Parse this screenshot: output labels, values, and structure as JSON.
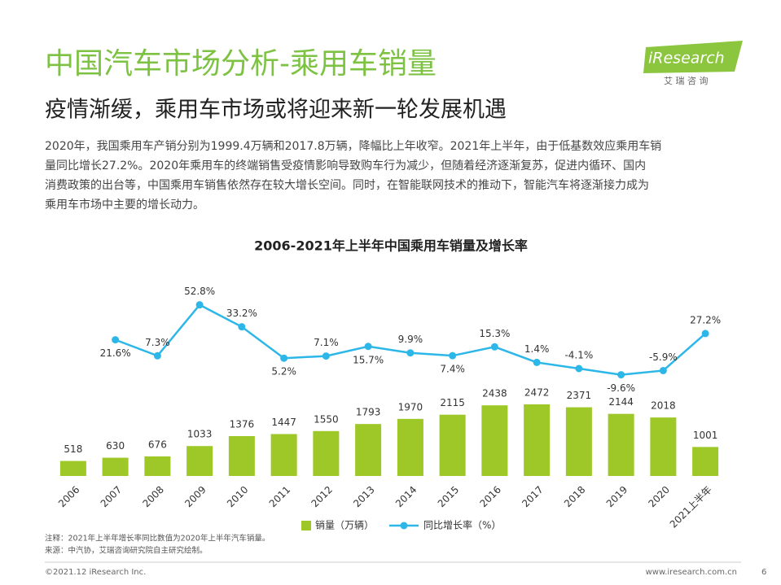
{
  "header": {
    "title": "中国汽车市场分析-乘用车销量",
    "subtitle": "疫情渐缓，乘用车市场或将迎来新一轮发展机遇",
    "paragraph": [
      "2020年，我国乘用车产销分别为1999.4万辆和2017.8万辆，降幅比上年收窄。2021年上半年，由于低基数效应乘用车销",
      "量同比增长27.2%。2020年乘用车的终端销售受疫情影响导致购车行为减少，但随着经济逐渐复苏，促进内循环、国内",
      "消费政策的出台等，中国乘用车销售依然存在较大增长空间。同时，在智能联网技术的推动下，智能汽车将逐渐接力成为",
      "乘用车市场中主要的增长动力。"
    ]
  },
  "logo": {
    "name": "iResearch",
    "chinese": "艾 瑞 咨 询"
  },
  "chart_data": {
    "type": "bar",
    "title": "2006-2021年上半年中国乘用车销量及增长率",
    "categories": [
      "2006",
      "2007",
      "2008",
      "2009",
      "2010",
      "2011",
      "2012",
      "2013",
      "2014",
      "2015",
      "2016",
      "2017",
      "2018",
      "2019",
      "2020",
      "2021上半年"
    ],
    "ylim": [
      0,
      6880
    ],
    "y2lim": [
      -100,
      78
    ],
    "series": [
      {
        "name": "销量（万辆）",
        "color": "#9dc828",
        "values": [
          518,
          630,
          676,
          1033,
          1376,
          1447,
          1550,
          1793,
          1970,
          2115,
          2438,
          2472,
          2371,
          2144,
          2018,
          1001
        ]
      },
      {
        "name": "同比增长率（%）",
        "type": "line",
        "axis": "y2",
        "color": "#2cb7e8",
        "values": [
          null,
          21.6,
          7.3,
          52.8,
          33.2,
          5.2,
          7.1,
          15.7,
          9.9,
          7.4,
          15.3,
          1.4,
          -4.1,
          -9.6,
          -5.9,
          27.2
        ],
        "value_labels": [
          null,
          "21.6%",
          "7.3%",
          "52.8%",
          "33.2%",
          "5.2%",
          "7.1%",
          "15.7%",
          "9.9%",
          "7.4%",
          "15.3%",
          "1.4%",
          "-4.1%",
          "-9.6%",
          "-5.9%",
          "27.2%"
        ]
      }
    ]
  },
  "notes": [
    "注释：2021年上半年增长率同比数值为2020年上半年汽车销量。",
    "来源：中汽协，艾瑞咨询研究院自主研究绘制。"
  ],
  "footer": {
    "copyright": "©2021.12 iResearch Inc.",
    "website": "www.iresearch.com.cn",
    "page": "6"
  }
}
